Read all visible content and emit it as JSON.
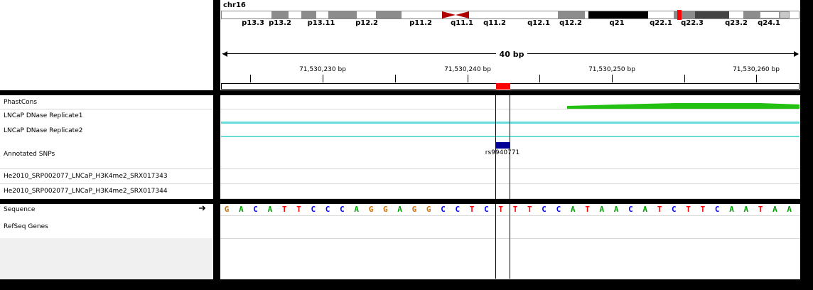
{
  "header": {
    "chromosome": "chr16",
    "ideogram_bands": [
      {
        "label": "p13.3",
        "stain": "gneg"
      },
      {
        "label": "p13.2",
        "stain": "gpos50"
      },
      {
        "label": "p13.11",
        "stain": "gpos50"
      },
      {
        "label": "p12.2",
        "stain": "gpos50"
      },
      {
        "label": "p11.2",
        "stain": "gpos50"
      },
      {
        "label": "q11.1",
        "stain": "acen"
      },
      {
        "label": "q11.2",
        "stain": "gneg"
      },
      {
        "label": "q12.1",
        "stain": "gneg"
      },
      {
        "label": "q12.2",
        "stain": "gpos50"
      },
      {
        "label": "q21",
        "stain": "gpos100"
      },
      {
        "label": "q22.1",
        "stain": "gneg"
      },
      {
        "label": "q22.3",
        "stain": "gpos50"
      },
      {
        "label": "q23.2",
        "stain": "gpos75"
      },
      {
        "label": "q24.1",
        "stain": "gpos50"
      }
    ],
    "span_label": "40 bp",
    "ruler_ticks": [
      "71,530,230 bp",
      "71,530,240 bp",
      "71,530,250 bp",
      "71,530,260 bp"
    ]
  },
  "tracks": {
    "data_tracks": [
      "PhastCons",
      "LNCaP DNase Replicate1",
      "LNCaP DNase Replicate2",
      "Annotated SNPs",
      "He2010_SRP002077_LNCaP_H3K4me2_SRX017343",
      "He2010_SRP002077_LNCaP_H3K4me2_SRX017344"
    ],
    "feature_tracks": [
      "Sequence",
      "RefSeq Genes"
    ]
  },
  "snp": {
    "id": "rs9940771"
  },
  "sequence": "GACATTCCCAGGAGGCCTCTTTCCATAACATCTTCAATAAA",
  "colors": {
    "A": "#00a000",
    "C": "#0000ff",
    "G": "#d17105",
    "T": "#ff0000",
    "phastcons": "#22c010",
    "dnase_line": "#66dddd",
    "snp": "#000096",
    "locus_marker": "#ff0000",
    "centromere": "#b00000"
  }
}
